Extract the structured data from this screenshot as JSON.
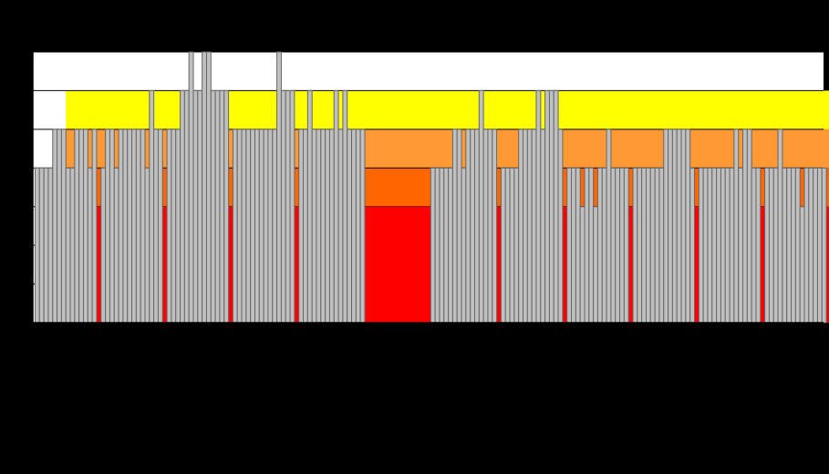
{
  "chart_data": {
    "type": "bar",
    "title": "",
    "xlabel": "",
    "ylabel": "",
    "ylim": [
      0,
      7
    ],
    "grid": true,
    "colors": {
      "background": "#000000",
      "plot_area": "#ffffff",
      "bar_fill": "#c0c0c0",
      "bar_stroke": "#666666",
      "axis": "#000000",
      "gridline": "#000000"
    },
    "background_bands": [
      {
        "from": 0,
        "to": 3,
        "color": "#ff0000"
      },
      {
        "from": 3,
        "to": 4,
        "color": "#ff6600"
      },
      {
        "from": 4,
        "to": 5,
        "color": "#ff9933"
      },
      {
        "from": 5,
        "to": 6,
        "color": "#ffff00"
      }
    ],
    "band_start_index": 7,
    "band_end_index": 183,
    "gaps": [
      {
        "from": 0,
        "to": 1,
        "color": "#ffffff"
      },
      {
        "from": 14,
        "to": 15,
        "color": "#ff0000"
      },
      {
        "from": 29,
        "to": 30,
        "color": "#ff0000"
      },
      {
        "from": 44,
        "to": 45,
        "color": "#ff0000"
      },
      {
        "from": 59,
        "to": 60,
        "color": "#ff0000"
      },
      {
        "from": 75,
        "to": 90,
        "color": "#ff0000"
      },
      {
        "from": 105,
        "to": 106,
        "color": "#ff0000"
      },
      {
        "from": 120,
        "to": 121,
        "color": "#ff0000"
      },
      {
        "from": 135,
        "to": 136,
        "color": "#ff0000"
      },
      {
        "from": 150,
        "to": 151,
        "color": "#ff0000"
      },
      {
        "from": 165,
        "to": 166,
        "color": "#ff0000"
      },
      {
        "from": 180,
        "to": 181,
        "color": "#ff0000"
      }
    ],
    "x_start": 1,
    "values": [
      4,
      4,
      4,
      4,
      5,
      5,
      5,
      4,
      4,
      5,
      5,
      5,
      4,
      5,
      0,
      4,
      5,
      5,
      4,
      5,
      5,
      5,
      5,
      5,
      5,
      4,
      6,
      5,
      5,
      0,
      5,
      5,
      5,
      6,
      6,
      7,
      6,
      6,
      7,
      7,
      6,
      6,
      6,
      6,
      0,
      5,
      5,
      5,
      5,
      5,
      5,
      5,
      5,
      5,
      5,
      7,
      6,
      6,
      6,
      0,
      5,
      5,
      6,
      5,
      5,
      5,
      5,
      5,
      6,
      5,
      6,
      5,
      5,
      5,
      5,
      0,
      0,
      0,
      0,
      0,
      0,
      0,
      0,
      0,
      0,
      0,
      0,
      0,
      0,
      0,
      4,
      4,
      4,
      4,
      4,
      5,
      5,
      4,
      5,
      5,
      5,
      6,
      5,
      5,
      5,
      0,
      4,
      4,
      4,
      4,
      5,
      5,
      5,
      5,
      6,
      5,
      6,
      6,
      6,
      5,
      0,
      4,
      4,
      4,
      3,
      4,
      4,
      3,
      4,
      4,
      5,
      4,
      4,
      4,
      4,
      0,
      4,
      4,
      4,
      4,
      4,
      4,
      4,
      5,
      5,
      5,
      5,
      5,
      5,
      4,
      0,
      4,
      4,
      4,
      4,
      4,
      4,
      4,
      4,
      5,
      4,
      5,
      5,
      4,
      4,
      0,
      4,
      4,
      4,
      5,
      4,
      4,
      4,
      4,
      3,
      4,
      4,
      4,
      4,
      4
    ]
  }
}
